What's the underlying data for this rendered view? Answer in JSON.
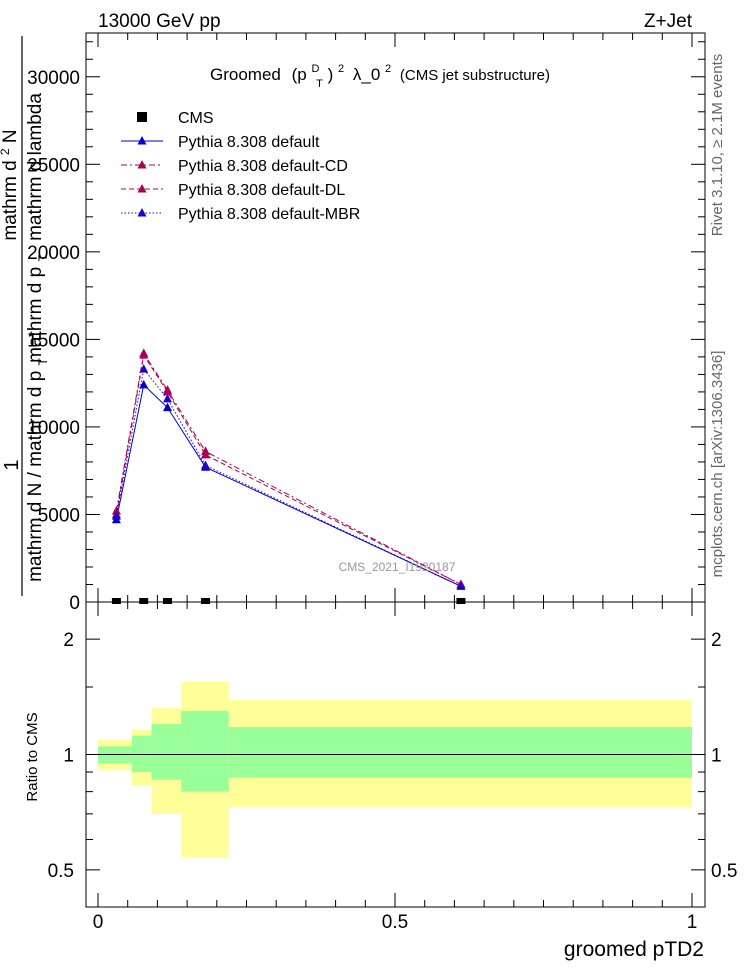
{
  "header": {
    "left": "13000 GeV pp",
    "right": "Z+Jet"
  },
  "side_labels": {
    "rivet": "Rivet 3.1.10, ≥ 2.1M events",
    "mcplots": "mcplots.cern.ch [arXiv:1306.3436]"
  },
  "watermark": "CMS_2021_I1920187",
  "chart_data": [
    {
      "type": "line",
      "title": {
        "main": "Groomed",
        "formula": "(p",
        "sup1": "D",
        "sub1": "T",
        "close": ")",
        "sup2": "2",
        "lambda": "λ_0",
        "sup3": "2",
        "suffix": "(CMS jet substructure)"
      },
      "ylabel": {
        "num_one": "1",
        "num_rest": "mathrm d N / mathrm d p",
        "num_sub": "T",
        "den_top": "mathrm d",
        "den_sup": "2",
        "den_top_rest": "N",
        "den_mid": "mathrm d p",
        "den_mid_sub": "T",
        "den_bottom": "mathrm d lambda"
      },
      "ylim": [
        0,
        32500
      ],
      "yticks": [
        0,
        5000,
        10000,
        15000,
        20000,
        25000,
        30000
      ],
      "ytick_labels": [
        "0",
        "5000",
        "10000",
        "15000",
        "20000",
        "25000",
        "30000"
      ],
      "xlim": [
        -0.02,
        1.02
      ],
      "grid": false,
      "legend_position": "top-left",
      "series": [
        {
          "name": "CMS",
          "marker": "square",
          "color": "#000000",
          "x": [
            0.031,
            0.077,
            0.117,
            0.181,
            0.611
          ],
          "y": [
            0,
            0,
            0,
            0,
            0
          ]
        },
        {
          "name": "Pythia 8.308 default",
          "marker": "triangle",
          "color": "#0000cc",
          "dash": "solid",
          "x": [
            0.031,
            0.077,
            0.117,
            0.181,
            0.611
          ],
          "y": [
            4700,
            12400,
            11100,
            7700,
            900
          ]
        },
        {
          "name": "Pythia 8.308 default-CD",
          "marker": "triangle",
          "color": "#aa0055",
          "dash": "dashdot",
          "x": [
            0.031,
            0.077,
            0.117,
            0.181,
            0.611
          ],
          "y": [
            5200,
            14200,
            12100,
            8600,
            1000
          ]
        },
        {
          "name": "Pythia 8.308 default-DL",
          "marker": "triangle",
          "color": "#aa0055",
          "dash": "dash",
          "x": [
            0.031,
            0.077,
            0.117,
            0.181,
            0.611
          ],
          "y": [
            5000,
            14100,
            12000,
            8400,
            1000
          ]
        },
        {
          "name": "Pythia 8.308 default-MBR",
          "marker": "triangle",
          "color": "#2200cc",
          "dash": "dot",
          "x": [
            0.031,
            0.077,
            0.117,
            0.181,
            0.611
          ],
          "y": [
            4900,
            13300,
            11600,
            7800,
            900
          ]
        }
      ]
    },
    {
      "type": "area",
      "ylabel": "Ratio to CMS",
      "xlabel": "groomed pTD2",
      "log_y": true,
      "ylim": [
        0.4,
        2.5
      ],
      "yticks": [
        0.5,
        1,
        2
      ],
      "ytick_labels": [
        "0.5",
        "1",
        "2"
      ],
      "xlim": [
        -0.02,
        1.02
      ],
      "xticks": [
        0,
        0.5,
        1
      ],
      "xtick_labels": [
        "0",
        "0.5",
        "1"
      ],
      "reference_line": 1,
      "bands": {
        "colors": {
          "outer": "#ffff99",
          "inner": "#99ff99"
        },
        "bins": [
          {
            "x0": 0.0,
            "x1": 0.057,
            "outer": [
              0.91,
              1.09
            ],
            "inner": [
              0.95,
              1.05
            ]
          },
          {
            "x0": 0.057,
            "x1": 0.09,
            "outer": [
              0.83,
              1.16
            ],
            "inner": [
              0.9,
              1.12
            ]
          },
          {
            "x0": 0.09,
            "x1": 0.14,
            "outer": [
              0.7,
              1.32
            ],
            "inner": [
              0.86,
              1.2
            ]
          },
          {
            "x0": 0.14,
            "x1": 0.22,
            "outer": [
              0.54,
              1.55
            ],
            "inner": [
              0.8,
              1.3
            ]
          },
          {
            "x0": 0.22,
            "x1": 1.0,
            "outer": [
              0.73,
              1.39
            ],
            "inner": [
              0.87,
              1.18
            ]
          }
        ]
      }
    }
  ]
}
